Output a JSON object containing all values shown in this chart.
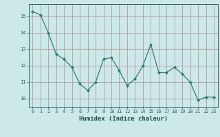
{
  "x": [
    0,
    1,
    2,
    3,
    4,
    5,
    6,
    7,
    8,
    9,
    10,
    11,
    12,
    13,
    14,
    15,
    16,
    17,
    18,
    19,
    20,
    21,
    22,
    23
  ],
  "y": [
    15.3,
    15.1,
    14.0,
    12.7,
    12.4,
    11.9,
    10.9,
    10.5,
    11.0,
    12.4,
    12.5,
    11.7,
    10.8,
    11.2,
    12.0,
    13.3,
    11.6,
    11.6,
    11.9,
    11.5,
    11.0,
    9.9,
    10.1,
    10.1
  ],
  "line_color": "#2e7d6e",
  "marker": "D",
  "markersize": 2.0,
  "linewidth": 0.9,
  "bg_color": "#cce8e8",
  "grid_color": "#b09090",
  "xlabel": "Humidex (Indice chaleur)",
  "xlim": [
    -0.5,
    23.5
  ],
  "ylim": [
    9.5,
    15.75
  ],
  "yticks": [
    10,
    11,
    12,
    13,
    14,
    15
  ],
  "xticks": [
    0,
    1,
    2,
    3,
    4,
    5,
    6,
    7,
    8,
    9,
    10,
    11,
    12,
    13,
    14,
    15,
    16,
    17,
    18,
    19,
    20,
    21,
    22,
    23
  ],
  "tick_color": "#2e6060",
  "label_color": "#1a5050",
  "xlabel_fontsize": 6.5,
  "tick_fontsize": 5.0
}
